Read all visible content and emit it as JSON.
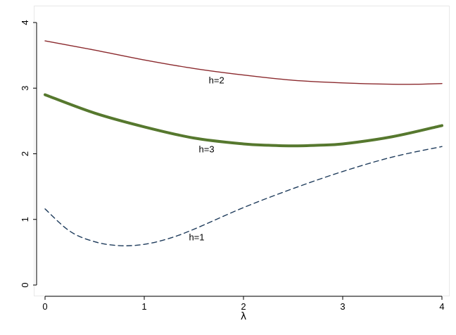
{
  "chart_data": {
    "type": "line",
    "title": "",
    "xlabel": "λ",
    "ylabel": "",
    "xlim": [
      0,
      4
    ],
    "ylim": [
      0,
      4
    ],
    "xticks": [
      "0",
      "1",
      "2",
      "3",
      "4"
    ],
    "yticks": [
      "0",
      "1",
      "2",
      "3",
      "4"
    ],
    "grid": false,
    "legend": "none",
    "series": [
      {
        "label": "h=2",
        "color": "#8b2a2e",
        "style": "solid-thin",
        "x": [
          0,
          0.5,
          1,
          1.5,
          2,
          2.5,
          3,
          3.5,
          3.75,
          4
        ],
        "y": [
          3.72,
          3.58,
          3.43,
          3.3,
          3.2,
          3.12,
          3.08,
          3.06,
          3.06,
          3.07
        ]
      },
      {
        "label": "h=3",
        "color": "#56782e",
        "style": "solid-thick",
        "x": [
          0,
          0.5,
          1,
          1.5,
          2,
          2.25,
          2.5,
          2.75,
          3,
          3.5,
          4
        ],
        "y": [
          2.9,
          2.62,
          2.41,
          2.24,
          2.15,
          2.13,
          2.12,
          2.13,
          2.15,
          2.26,
          2.43
        ]
      },
      {
        "label": "h=1",
        "color": "#1f3c5c",
        "style": "dashed",
        "x": [
          0,
          0.25,
          0.5,
          0.75,
          1,
          1.25,
          1.5,
          2,
          2.5,
          3,
          3.5,
          4
        ],
        "y": [
          1.16,
          0.82,
          0.66,
          0.6,
          0.62,
          0.71,
          0.85,
          1.18,
          1.47,
          1.73,
          1.95,
          2.11
        ]
      }
    ],
    "annotations": [
      {
        "text": "h=2",
        "x": 1.65,
        "y": 3.07
      },
      {
        "text": "h=3",
        "x": 1.55,
        "y": 2.02
      },
      {
        "text": "h=1",
        "x": 1.45,
        "y": 0.68
      }
    ]
  }
}
